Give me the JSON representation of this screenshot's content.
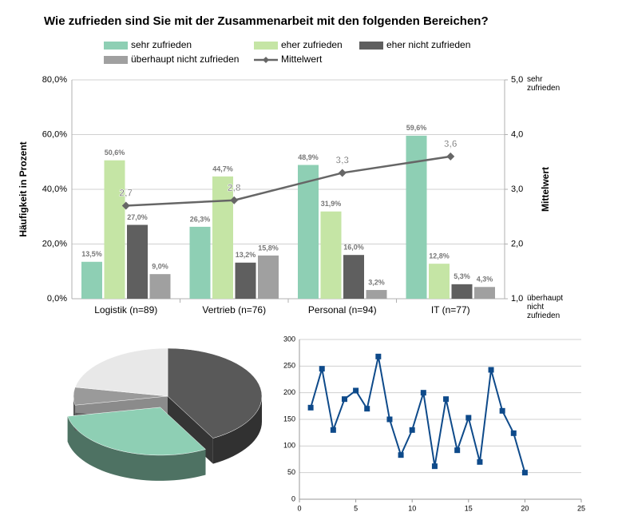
{
  "chart_data": [
    {
      "type": "bar",
      "title": "Wie zufrieden sind Sie mit der Zusammenarbeit mit den folgenden Bereichen?",
      "categories": [
        "Logistik (n=89)",
        "Vertrieb (n=76)",
        "Personal (n=94)",
        "IT (n=77)"
      ],
      "series": [
        {
          "name": "sehr zufrieden",
          "color": "#8ecfb4",
          "values": [
            13.5,
            26.3,
            48.9,
            59.6
          ],
          "value_labels": [
            "13,5%",
            "26,3%",
            "48,9%",
            "59,6%"
          ]
        },
        {
          "name": "eher zufrieden",
          "color": "#c5e5a5",
          "values": [
            50.6,
            44.7,
            31.9,
            12.8
          ],
          "value_labels": [
            "50,6%",
            "44,7%",
            "31,9%",
            "12,8%"
          ]
        },
        {
          "name": "eher nicht zufrieden",
          "color": "#5f5f5f",
          "values": [
            27.0,
            13.2,
            16.0,
            5.3
          ],
          "value_labels": [
            "27,0%",
            "13,2%",
            "16,0%",
            "5,3%"
          ]
        },
        {
          "name": "überhaupt nicht zufrieden",
          "color": "#a0a0a0",
          "values": [
            9.0,
            15.8,
            3.2,
            4.3
          ],
          "value_labels": [
            "9,0%",
            "15,8%",
            "3,2%",
            "4,3%"
          ]
        },
        {
          "name": "Mittelwert",
          "color": "#666666",
          "type": "line",
          "axis": "y2",
          "values": [
            2.7,
            2.8,
            3.3,
            3.6
          ],
          "value_labels": [
            "2,7",
            "2,8",
            "3,3",
            "3,6"
          ]
        }
      ],
      "ylabel": "Häufigkeit in Prozent",
      "y2label": "Mittelwert",
      "ylim": [
        0,
        80
      ],
      "yticks": [
        {
          "value": 0,
          "label": "0,0%"
        },
        {
          "value": 20,
          "label": "20,0%"
        },
        {
          "value": 40,
          "label": "40,0%"
        },
        {
          "value": 60,
          "label": "60,0%"
        },
        {
          "value": 80,
          "label": "80,0%"
        }
      ],
      "y2lim": [
        1,
        5
      ],
      "y2ticks": [
        {
          "value": 1,
          "label": "1,0"
        },
        {
          "value": 2,
          "label": "2,0"
        },
        {
          "value": 3,
          "label": "3,0"
        },
        {
          "value": 4,
          "label": "4,0"
        },
        {
          "value": 5,
          "label": "5,0"
        }
      ],
      "y2_annotations": [
        {
          "value": 5,
          "label": "sehr zufrieden"
        },
        {
          "value": 1,
          "label": "überhaupt nicht zufrieden"
        }
      ],
      "grid": true,
      "legend": "top"
    },
    {
      "type": "pie3d",
      "values": [
        42,
        30,
        6,
        22
      ],
      "colors": [
        "#595959",
        "#8ecfb4",
        "#9a9a9a",
        "#e8e8e8"
      ],
      "explode": [
        0,
        1,
        0,
        0
      ]
    },
    {
      "type": "line",
      "x": [
        1,
        2,
        3,
        4,
        5,
        6,
        7,
        8,
        9,
        10,
        11,
        12,
        13,
        14,
        15,
        16,
        17,
        18,
        19,
        20
      ],
      "values": [
        172,
        245,
        130,
        188,
        204,
        170,
        268,
        150,
        83,
        130,
        200,
        62,
        188,
        92,
        153,
        70,
        243,
        166,
        124,
        50
      ],
      "color": "#0e4a8a",
      "xlim": [
        0,
        25
      ],
      "xticks": [
        0,
        5,
        10,
        15,
        20,
        25
      ],
      "ylim": [
        0,
        300
      ],
      "yticks": [
        0,
        50,
        100,
        150,
        200,
        250,
        300
      ],
      "grid": true
    }
  ]
}
